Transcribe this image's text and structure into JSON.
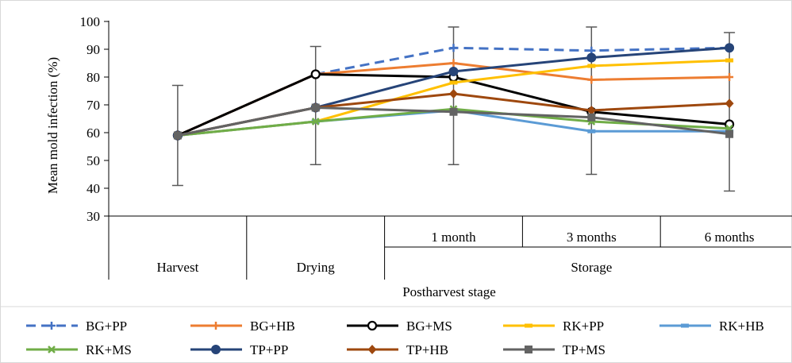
{
  "chart_data": {
    "type": "line",
    "title": "",
    "ylabel": "Mean mold infection (%)",
    "xlabel": "Postharvest stage",
    "ylim": [
      30,
      100
    ],
    "yticks": [
      30,
      40,
      50,
      60,
      70,
      80,
      90,
      100
    ],
    "grid": false,
    "legend_position": "bottom",
    "x": [
      "Harvest",
      "Drying",
      "1 month",
      "3 months",
      "6 months"
    ],
    "x_groups": [
      {
        "label": "Harvest",
        "sublabels": [
          ""
        ]
      },
      {
        "label": "Drying",
        "sublabels": [
          ""
        ]
      },
      {
        "label": "Storage",
        "sublabels": [
          "1 month",
          "3 months",
          "6 months"
        ]
      }
    ],
    "series": [
      {
        "name": "BG+PP",
        "color": "#4472C4",
        "dash": true,
        "marker": "plus",
        "values": [
          59,
          81,
          90.5,
          89.5,
          90.5
        ]
      },
      {
        "name": "BG+HB",
        "color": "#ED7D31",
        "dash": false,
        "marker": "plus",
        "values": [
          59,
          81,
          85,
          79,
          80
        ]
      },
      {
        "name": "BG+MS",
        "color": "#000000",
        "dash": false,
        "marker": "circle-open",
        "values": [
          59,
          81,
          80,
          67.5,
          63
        ]
      },
      {
        "name": "RK+PP",
        "color": "#FFC000",
        "dash": false,
        "marker": "dash",
        "values": [
          59,
          64,
          78,
          84,
          86
        ]
      },
      {
        "name": "RK+HB",
        "color": "#5B9BD5",
        "dash": false,
        "marker": "dash",
        "values": [
          59,
          64,
          68,
          60.5,
          60.5
        ]
      },
      {
        "name": "RK+MS",
        "color": "#70AD47",
        "dash": false,
        "marker": "x",
        "values": [
          59,
          64,
          68.5,
          64,
          61.5
        ]
      },
      {
        "name": "TP+PP",
        "color": "#264478",
        "dash": false,
        "marker": "circle",
        "values": [
          59,
          69,
          82,
          87,
          90.5
        ]
      },
      {
        "name": "TP+HB",
        "color": "#9E480E",
        "dash": false,
        "marker": "diamond",
        "values": [
          59,
          69,
          74,
          68,
          70.5
        ]
      },
      {
        "name": "TP+MS",
        "color": "#636363",
        "dash": false,
        "marker": "square",
        "values": [
          59,
          69,
          67.5,
          65.5,
          59.5
        ]
      }
    ],
    "error_bars": [
      {
        "x": "Harvest",
        "low": 41,
        "high": 77
      },
      {
        "x": "Drying",
        "low": 48.5,
        "high": 91
      },
      {
        "x": "1 month",
        "low": 48.5,
        "high": 98
      },
      {
        "x": "3 months",
        "low": 45,
        "high": 98
      },
      {
        "x": "6 months",
        "low": 39,
        "high": 96
      }
    ]
  }
}
